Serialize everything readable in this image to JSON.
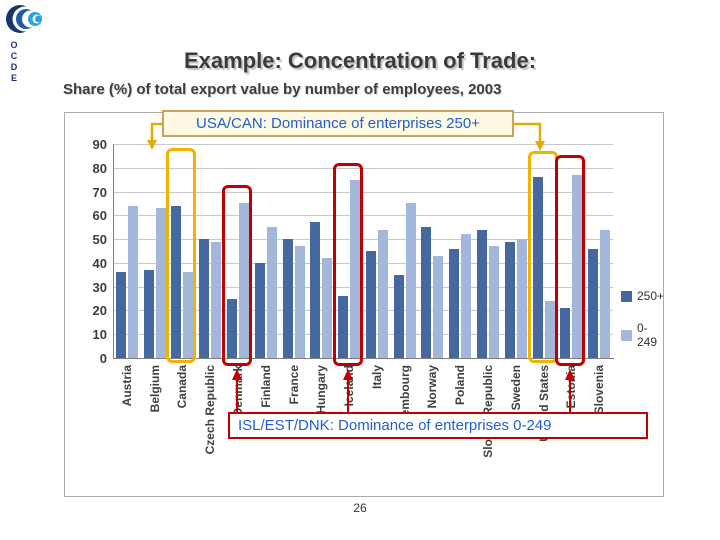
{
  "logo": {
    "text": "OCDE"
  },
  "title": "Example: Concentration of Trade:",
  "subtitle": "Share (%) of total export value by number of employees, 2003",
  "page_number": "26",
  "annotations": {
    "top_callout": "USA/CAN: Dominance of enterprises 250+",
    "bottom_callout": "ISL/EST/DNK: Dominance of enterprises 0-249",
    "yellow_highlighted_countries": [
      "Canada",
      "United States"
    ],
    "red_highlighted_countries": [
      "Denmark",
      "Iceland",
      "Estonia"
    ]
  },
  "colors": {
    "series_dark": "#45689e",
    "series_light": "#a2b7da",
    "yellow_highlight": "#f0b400",
    "red_highlight": "#c00000",
    "callout_text": "#1f5fd0",
    "top_callout_border": "#c9a35c"
  },
  "chart_data": {
    "type": "bar",
    "title": "",
    "xlabel": "",
    "ylabel": "",
    "ylim": [
      0,
      90
    ],
    "yticks": [
      0,
      10,
      20,
      30,
      40,
      50,
      60,
      70,
      80,
      90
    ],
    "grid": true,
    "legend_position": "right",
    "categories": [
      "Austria",
      "Belgium",
      "Canada",
      "Czech Republic",
      "Denmark",
      "Finland",
      "France",
      "Hungary",
      "Iceland",
      "Italy",
      "Luxembourg",
      "Norway",
      "Poland",
      "Slovak Republic",
      "Sweden",
      "United States",
      "Estonia",
      "Slovenia"
    ],
    "series": [
      {
        "name": "250+",
        "color": "#45689e",
        "values": [
          36,
          37,
          64,
          50,
          25,
          40,
          50,
          57,
          26,
          45,
          35,
          55,
          46,
          54,
          49,
          76,
          21,
          46
        ]
      },
      {
        "name": "0-249",
        "color": "#a2b7da",
        "values": [
          64,
          63,
          36,
          49,
          65,
          55,
          47,
          42,
          75,
          54,
          65,
          43,
          52,
          47,
          50,
          24,
          77,
          54
        ]
      }
    ]
  }
}
